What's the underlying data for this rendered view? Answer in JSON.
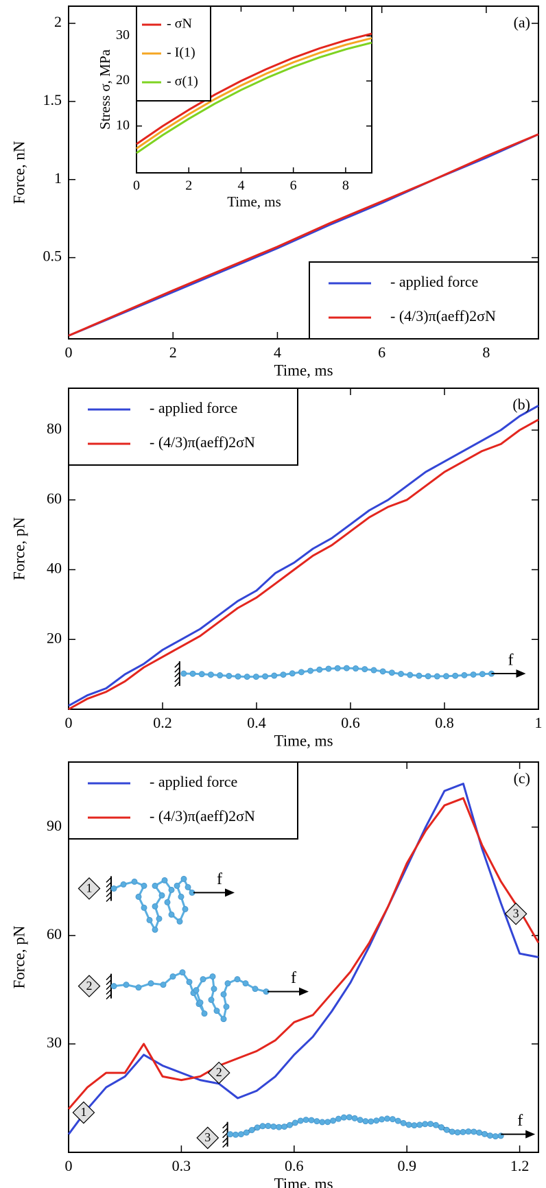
{
  "chart_data": [
    {
      "type": "line",
      "panel_label": "(a)",
      "xlabel": "Time, ms",
      "ylabel": "Force, nN",
      "x": [
        0,
        1,
        2,
        3,
        4,
        5,
        6,
        7,
        8,
        9
      ],
      "series": [
        {
          "name": "- applied force",
          "color": "#3346d6",
          "values": [
            0,
            0.14,
            0.28,
            0.42,
            0.56,
            0.71,
            0.85,
            1.0,
            1.14,
            1.29
          ]
        },
        {
          "name": "- (4/3)π(aeff)2σN",
          "color": "#e3261e",
          "values": [
            0,
            0.145,
            0.29,
            0.43,
            0.57,
            0.72,
            0.86,
            1.0,
            1.15,
            1.29
          ]
        }
      ],
      "xlim": [
        0,
        9
      ],
      "ylim": [
        -0.02,
        2.11
      ],
      "xticks": [
        0,
        2,
        4,
        6,
        8
      ],
      "yticks": [
        0.5,
        1,
        1.5,
        2
      ],
      "legend": "lower right",
      "inset": {
        "type": "line",
        "xlabel": "Time, ms",
        "ylabel": "Stress σ, MPa",
        "x": [
          0,
          1,
          2,
          3,
          4,
          5,
          6,
          7,
          8,
          9
        ],
        "series": [
          {
            "name": "- σN",
            "color": "#e3261e",
            "values": [
              6,
              9.97,
              13.6,
              16.97,
              20,
              22.72,
              25.13,
              27.23,
              29.02,
              30.5
            ]
          },
          {
            "name": "- I(1)",
            "color": "#f5a623",
            "values": [
              5,
              8.97,
              12.6,
              15.97,
              19,
              21.72,
              24.13,
              26.23,
              28.02,
              29.5
            ]
          },
          {
            "name": "- σ(1)",
            "color": "#7ed321",
            "values": [
              4,
              7.97,
              11.6,
              14.97,
              18,
              20.72,
              23.13,
              25.23,
              27.02,
              28.5
            ]
          }
        ],
        "xlim": [
          0,
          9
        ],
        "ylim": [
          -0.4,
          36.6
        ],
        "xticks": [
          0,
          2,
          4,
          6,
          8
        ],
        "yticks": [
          10,
          20,
          30
        ],
        "legend": "upper left"
      }
    },
    {
      "type": "line",
      "panel_label": "(b)",
      "xlabel": "Time, ms",
      "ylabel": "Force, pN",
      "force_label": "f",
      "x": [
        0,
        0.04,
        0.08,
        0.12,
        0.16,
        0.2,
        0.24,
        0.28,
        0.32,
        0.36,
        0.4,
        0.44,
        0.48,
        0.52,
        0.56,
        0.6,
        0.64,
        0.68,
        0.72,
        0.76,
        0.8,
        0.84,
        0.88,
        0.92,
        0.96,
        1
      ],
      "series": [
        {
          "name": "- applied force",
          "color": "#3346d6",
          "values": [
            1,
            4,
            6,
            10,
            13,
            17,
            20,
            23,
            27,
            31,
            34,
            39,
            42,
            46,
            49,
            53,
            57,
            60,
            64,
            68,
            71,
            74,
            77,
            80,
            84,
            87
          ]
        },
        {
          "name": "- (4/3)π(aeff)2σN",
          "color": "#e3261e",
          "values": [
            0,
            3,
            5,
            8,
            12,
            15,
            18,
            21,
            25,
            29,
            32,
            36,
            40,
            44,
            47,
            51,
            55,
            58,
            60,
            64,
            68,
            71,
            74,
            76,
            80,
            83
          ]
        }
      ],
      "xlim": [
        0,
        1
      ],
      "ylim": [
        0,
        92
      ],
      "xticks": [
        0,
        0.2,
        0.4,
        0.6,
        0.8,
        1
      ],
      "yticks": [
        20,
        40,
        60,
        80
      ],
      "legend": "upper left"
    },
    {
      "type": "line",
      "panel_label": "(c)",
      "xlabel": "Time, ms",
      "ylabel": "Force, pN",
      "force_label": "f",
      "chain_labels": [
        "1",
        "2",
        "3"
      ],
      "x": [
        0,
        0.05,
        0.1,
        0.15,
        0.2,
        0.25,
        0.3,
        0.35,
        0.4,
        0.45,
        0.5,
        0.55,
        0.6,
        0.65,
        0.7,
        0.75,
        0.8,
        0.85,
        0.9,
        0.95,
        1,
        1.05,
        1.1,
        1.15,
        1.2,
        1.25
      ],
      "series": [
        {
          "name": "- applied force",
          "color": "#3346d6",
          "values": [
            5,
            12,
            18,
            21,
            27,
            24,
            22,
            20,
            19,
            15,
            17,
            21,
            27,
            32,
            39,
            47,
            57,
            68,
            79,
            90,
            100,
            102,
            84,
            69,
            55,
            54
          ]
        },
        {
          "name": "- (4/3)π(aeff)2σN",
          "color": "#e3261e",
          "values": [
            12,
            18,
            22,
            22,
            30,
            21,
            20,
            21,
            24,
            26,
            28,
            31,
            36,
            38,
            44,
            50,
            58,
            68,
            80,
            89,
            96,
            98,
            85,
            75,
            67,
            58
          ]
        }
      ],
      "annotations": [
        {
          "text": "1",
          "x": 0.04,
          "y": 11
        },
        {
          "text": "2",
          "x": 0.4,
          "y": 22
        },
        {
          "text": "3",
          "x": 1.19,
          "y": 66
        }
      ],
      "xlim": [
        0,
        1.25
      ],
      "ylim": [
        0,
        108
      ],
      "xticks": [
        0,
        0.3,
        0.6,
        0.9,
        1.2
      ],
      "yticks": [
        30,
        60,
        90
      ],
      "legend": "upper left"
    }
  ]
}
